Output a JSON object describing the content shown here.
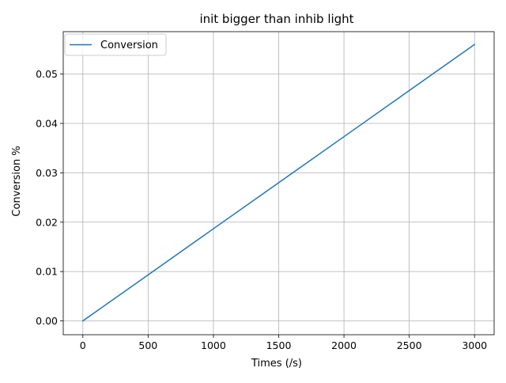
{
  "chart_data": {
    "type": "line",
    "title": "init bigger than inhib light",
    "xlabel": "Times (/s)",
    "ylabel": "Conversion %",
    "xlim": [
      -150,
      3150
    ],
    "ylim": [
      -0.0028,
      0.0586
    ],
    "xticks": [
      0,
      500,
      1000,
      1500,
      2000,
      2500,
      3000
    ],
    "xtick_labels": [
      "0",
      "500",
      "1000",
      "1500",
      "2000",
      "2500",
      "3000"
    ],
    "yticks": [
      0.0,
      0.01,
      0.02,
      0.03,
      0.04,
      0.05
    ],
    "ytick_labels": [
      "0.00",
      "0.01",
      "0.02",
      "0.03",
      "0.04",
      "0.05"
    ],
    "grid": true,
    "legend_position": "top-left",
    "series": [
      {
        "name": "Conversion",
        "color": "#1f77b4",
        "x": [
          0,
          500,
          1000,
          1500,
          2000,
          2500,
          3000
        ],
        "y": [
          0.0,
          0.00933,
          0.01867,
          0.028,
          0.03733,
          0.04667,
          0.056
        ]
      }
    ]
  }
}
